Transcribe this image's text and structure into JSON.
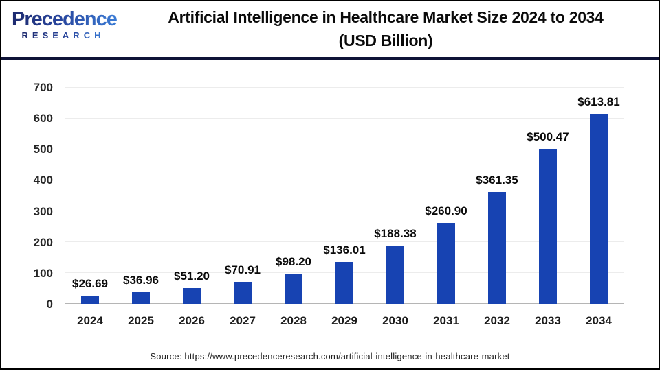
{
  "header": {
    "logo_line1": "Precedence",
    "logo_line2": "RESEARCH",
    "title_line1": "Artificial Intelligence in Healthcare Market Size 2024 to 2034",
    "title_line2": "(USD Billion)"
  },
  "chart_data": {
    "type": "bar",
    "title": "Artificial Intelligence in Healthcare Market Size 2024 to 2034 (USD Billion)",
    "categories": [
      "2024",
      "2025",
      "2026",
      "2027",
      "2028",
      "2029",
      "2030",
      "2031",
      "2032",
      "2033",
      "2034"
    ],
    "values": [
      26.69,
      36.96,
      51.2,
      70.91,
      98.2,
      136.01,
      188.38,
      260.9,
      361.35,
      500.47,
      613.81
    ],
    "value_labels": [
      "$26.69",
      "$36.96",
      "$51.20",
      "$70.91",
      "$98.20",
      "$136.01",
      "$188.38",
      "$260.90",
      "$361.35",
      "$500.47",
      "$613.81"
    ],
    "xlabel": "",
    "ylabel": "",
    "ylim": [
      0,
      700
    ],
    "yticks": [
      0,
      100,
      200,
      300,
      400,
      500,
      600,
      700
    ],
    "grid": true,
    "legend_position": "none",
    "bar_color": "#1743b2",
    "gridline_color": "#ececec",
    "baseline_color": "#b5b5b5"
  },
  "footer": {
    "source": "Source: https://www.precedenceresearch.com/artificial-intelligence-in-healthcare-market"
  }
}
